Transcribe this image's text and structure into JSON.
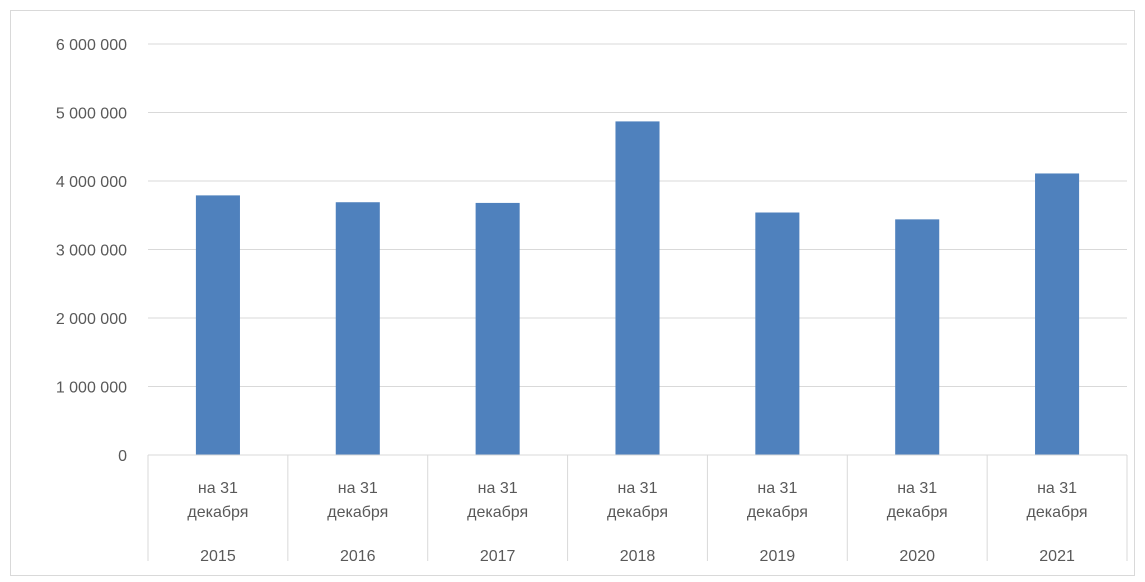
{
  "chart_data": {
    "type": "bar",
    "title": "",
    "xlabel": "",
    "ylabel": "",
    "ylim": [
      0,
      6000000
    ],
    "yticks": [
      0,
      1000000,
      2000000,
      3000000,
      4000000,
      5000000,
      6000000
    ],
    "ytick_labels": [
      "0",
      "1 000 000",
      "2 000 000",
      "3 000 000",
      "4 000 000",
      "5 000 000",
      "6 000 000"
    ],
    "grid": true,
    "legend": "none",
    "categories": [
      {
        "line1": "на 31",
        "line2": "декабря",
        "year": "2015"
      },
      {
        "line1": "на 31",
        "line2": "декабря",
        "year": "2016"
      },
      {
        "line1": "на 31",
        "line2": "декабря",
        "year": "2017"
      },
      {
        "line1": "на 31",
        "line2": "декабря",
        "year": "2018"
      },
      {
        "line1": "на 31",
        "line2": "декабря",
        "year": "2019"
      },
      {
        "line1": "на 31",
        "line2": "декабря",
        "year": "2020"
      },
      {
        "line1": "на 31",
        "line2": "декабря",
        "year": "2021"
      }
    ],
    "values": [
      3790000,
      3690000,
      3680000,
      4870000,
      3540000,
      3440000,
      4110000
    ],
    "colors": {
      "bar": "#4f81bd",
      "grid": "#d9d9d9",
      "axis": "#d9d9d9",
      "text": "#595959"
    }
  }
}
